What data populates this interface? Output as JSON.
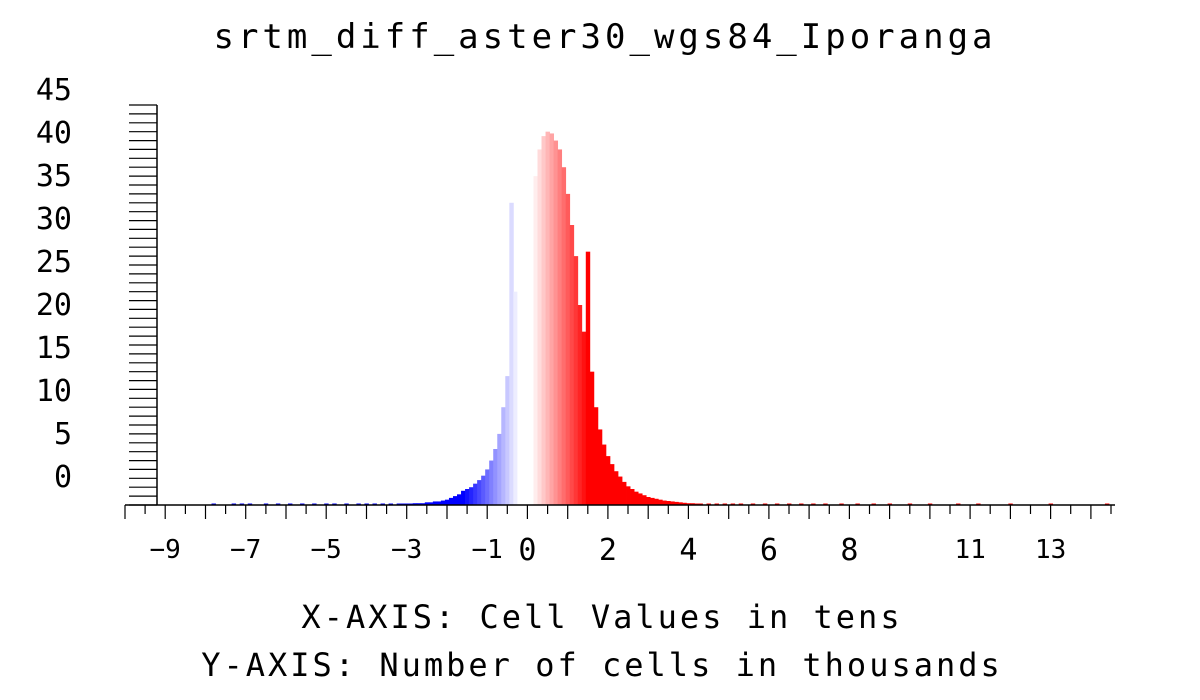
{
  "chart_data": {
    "type": "bar",
    "title": "srtm_diff_aster30_wgs84_Iporanga",
    "xlabel": "X-AXIS: Cell Values in tens",
    "ylabel": "Y-AXIS: Number of cells in thousands",
    "xlim": [
      -10.0,
      14.6
    ],
    "ylim": [
      0,
      45
    ],
    "y_ticks": [
      "45",
      "40",
      "35",
      "30",
      "25",
      "20",
      "15",
      "10",
      "5",
      "0"
    ],
    "x_ticks": [
      "-9",
      "-7",
      "-5",
      "-3",
      "-1",
      "0",
      "2",
      "4",
      "6",
      "8",
      "11",
      "13"
    ],
    "grid": false,
    "legend": "none",
    "colors": {
      "negative": "#0000ff",
      "zero": "#ffffff",
      "positive": "#ff0000",
      "axis": "#000000"
    },
    "bin_width": 0.1,
    "bins": [
      {
        "x": -7.8,
        "y": 0.1
      },
      {
        "x": -7.3,
        "y": 0.1
      },
      {
        "x": -7.1,
        "y": 0.1
      },
      {
        "x": -6.9,
        "y": 0.1
      },
      {
        "x": -6.5,
        "y": 0.1
      },
      {
        "x": -6.2,
        "y": 0.1
      },
      {
        "x": -5.9,
        "y": 0.1
      },
      {
        "x": -5.6,
        "y": 0.1
      },
      {
        "x": -5.3,
        "y": 0.1
      },
      {
        "x": -5.0,
        "y": 0.1
      },
      {
        "x": -4.8,
        "y": 0.1
      },
      {
        "x": -4.5,
        "y": 0.1
      },
      {
        "x": -4.2,
        "y": 0.1
      },
      {
        "x": -4.0,
        "y": 0.1
      },
      {
        "x": -3.8,
        "y": 0.1
      },
      {
        "x": -3.6,
        "y": 0.1
      },
      {
        "x": -3.4,
        "y": 0.1
      },
      {
        "x": -3.2,
        "y": 0.1
      },
      {
        "x": -3.1,
        "y": 0.1
      },
      {
        "x": -3.0,
        "y": 0.15
      },
      {
        "x": -2.9,
        "y": 0.15
      },
      {
        "x": -2.8,
        "y": 0.2
      },
      {
        "x": -2.7,
        "y": 0.2
      },
      {
        "x": -2.6,
        "y": 0.2
      },
      {
        "x": -2.5,
        "y": 0.3
      },
      {
        "x": -2.4,
        "y": 0.3
      },
      {
        "x": -2.3,
        "y": 0.4
      },
      {
        "x": -2.2,
        "y": 0.4
      },
      {
        "x": -2.1,
        "y": 0.5
      },
      {
        "x": -2.0,
        "y": 0.6
      },
      {
        "x": -1.9,
        "y": 0.8
      },
      {
        "x": -1.8,
        "y": 1.0
      },
      {
        "x": -1.7,
        "y": 1.2
      },
      {
        "x": -1.6,
        "y": 1.6
      },
      {
        "x": -1.5,
        "y": 1.8
      },
      {
        "x": -1.4,
        "y": 2.0
      },
      {
        "x": -1.3,
        "y": 2.4
      },
      {
        "x": -1.2,
        "y": 2.8
      },
      {
        "x": -1.1,
        "y": 3.3
      },
      {
        "x": -1.0,
        "y": 4.0
      },
      {
        "x": -0.9,
        "y": 5.0
      },
      {
        "x": -0.8,
        "y": 6.3
      },
      {
        "x": -0.7,
        "y": 8.0
      },
      {
        "x": -0.6,
        "y": 11.0
      },
      {
        "x": -0.5,
        "y": 14.5
      },
      {
        "x": -0.4,
        "y": 34.0
      },
      {
        "x": -0.3,
        "y": 24.0
      },
      {
        "x": -0.2,
        "y": 27.0
      },
      {
        "x": -0.1,
        "y": 29.5
      },
      {
        "x": 0.0,
        "y": 32.0
      },
      {
        "x": 0.1,
        "y": 34.5
      },
      {
        "x": 0.2,
        "y": 37.0
      },
      {
        "x": 0.3,
        "y": 40.0
      },
      {
        "x": 0.4,
        "y": 41.5
      },
      {
        "x": 0.5,
        "y": 42.0
      },
      {
        "x": 0.6,
        "y": 41.8
      },
      {
        "x": 0.7,
        "y": 41.0
      },
      {
        "x": 0.8,
        "y": 40.0
      },
      {
        "x": 0.9,
        "y": 38.0
      },
      {
        "x": 1.0,
        "y": 35.0
      },
      {
        "x": 1.1,
        "y": 31.5
      },
      {
        "x": 1.2,
        "y": 28.0
      },
      {
        "x": 1.3,
        "y": 22.5
      },
      {
        "x": 1.4,
        "y": 19.5
      },
      {
        "x": 1.5,
        "y": 28.5
      },
      {
        "x": 1.6,
        "y": 15.0
      },
      {
        "x": 1.7,
        "y": 11.0
      },
      {
        "x": 1.8,
        "y": 8.5
      },
      {
        "x": 1.9,
        "y": 6.8
      },
      {
        "x": 2.0,
        "y": 5.5
      },
      {
        "x": 2.1,
        "y": 4.6
      },
      {
        "x": 2.2,
        "y": 3.8
      },
      {
        "x": 2.3,
        "y": 3.2
      },
      {
        "x": 2.4,
        "y": 2.6
      },
      {
        "x": 2.5,
        "y": 2.1
      },
      {
        "x": 2.6,
        "y": 1.8
      },
      {
        "x": 2.7,
        "y": 1.5
      },
      {
        "x": 2.8,
        "y": 1.3
      },
      {
        "x": 2.9,
        "y": 1.1
      },
      {
        "x": 3.0,
        "y": 0.9
      },
      {
        "x": 3.1,
        "y": 0.8
      },
      {
        "x": 3.2,
        "y": 0.7
      },
      {
        "x": 3.3,
        "y": 0.6
      },
      {
        "x": 3.4,
        "y": 0.5
      },
      {
        "x": 3.5,
        "y": 0.45
      },
      {
        "x": 3.6,
        "y": 0.4
      },
      {
        "x": 3.7,
        "y": 0.35
      },
      {
        "x": 3.8,
        "y": 0.3
      },
      {
        "x": 3.9,
        "y": 0.25
      },
      {
        "x": 4.0,
        "y": 0.2
      },
      {
        "x": 4.1,
        "y": 0.2
      },
      {
        "x": 4.2,
        "y": 0.15
      },
      {
        "x": 4.3,
        "y": 0.15
      },
      {
        "x": 4.5,
        "y": 0.15
      },
      {
        "x": 4.7,
        "y": 0.1
      },
      {
        "x": 4.9,
        "y": 0.1
      },
      {
        "x": 5.1,
        "y": 0.1
      },
      {
        "x": 5.3,
        "y": 0.1
      },
      {
        "x": 5.6,
        "y": 0.1
      },
      {
        "x": 5.9,
        "y": 0.1
      },
      {
        "x": 6.2,
        "y": 0.1
      },
      {
        "x": 6.5,
        "y": 0.1
      },
      {
        "x": 6.8,
        "y": 0.1
      },
      {
        "x": 7.1,
        "y": 0.1
      },
      {
        "x": 7.4,
        "y": 0.1
      },
      {
        "x": 7.8,
        "y": 0.1
      },
      {
        "x": 8.2,
        "y": 0.1
      },
      {
        "x": 8.6,
        "y": 0.1
      },
      {
        "x": 9.0,
        "y": 0.1
      },
      {
        "x": 9.5,
        "y": 0.1
      },
      {
        "x": 10.0,
        "y": 0.1
      },
      {
        "x": 10.7,
        "y": 0.1
      },
      {
        "x": 11.2,
        "y": 0.1
      },
      {
        "x": 12.0,
        "y": 0.1
      },
      {
        "x": 13.0,
        "y": 0.1
      },
      {
        "x": 14.4,
        "y": 0.1
      }
    ]
  }
}
